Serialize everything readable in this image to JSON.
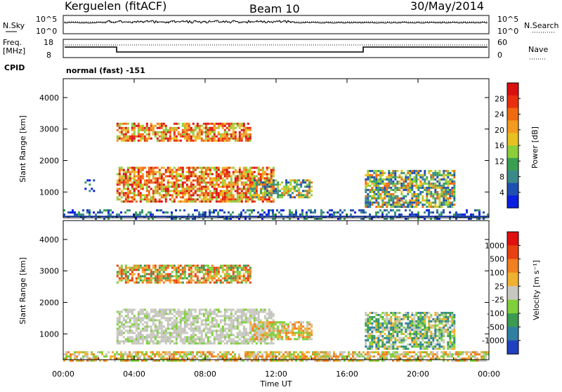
{
  "header": {
    "site": "Kerguelen (fitACF)",
    "beam": "Beam 10",
    "date": "30/May/2014"
  },
  "params": {
    "nsky_label": "N.Sky",
    "nsearch_label": "N.Search",
    "nsky_ticks": [
      "10^5",
      "10^0"
    ],
    "nsearch_ticks": [
      "10^5",
      "10^0"
    ],
    "freq_label_1": "Freq.",
    "freq_label_2": "[MHz]",
    "freq_ticks": [
      "18",
      "8"
    ],
    "nave_label": "Nave",
    "nave_ticks": [
      "60",
      "0"
    ],
    "cpid_label": "CPID",
    "cpid_value": "normal (fast) -151"
  },
  "chart_data": [
    {
      "type": "heatmap",
      "panel": "power",
      "ylabel": "Slant Range [km]",
      "yticks": [
        1000,
        2000,
        3000,
        4000
      ],
      "ylim": [
        180,
        4600
      ],
      "xlim_hours": [
        0,
        24
      ],
      "xticks": [
        "00:00",
        "04:00",
        "08:00",
        "12:00",
        "16:00",
        "20:00",
        "00:00"
      ],
      "xticks_hours": [
        0,
        4,
        8,
        12,
        16,
        20,
        24
      ],
      "colorbar_label": "Power [dB]",
      "colorbar_ticks": [
        "4",
        "8",
        "12",
        "16",
        "20",
        "24",
        "28"
      ],
      "colorbar_colors": [
        "#0a1fe0",
        "#1f4fb0",
        "#3a8a8a",
        "#3aa050",
        "#8ccf3a",
        "#e8c020",
        "#f39a20",
        "#f06a10",
        "#e83010",
        "#d81010"
      ],
      "echo_regions": [
        {
          "t0": 3.0,
          "t1": 10.5,
          "r0": 2600,
          "r1": 3200,
          "level": "high"
        },
        {
          "t0": 3.0,
          "t1": 11.8,
          "r0": 700,
          "r1": 1800,
          "level": "high"
        },
        {
          "t0": 10.5,
          "t1": 14.0,
          "r0": 800,
          "r1": 1400,
          "level": "mid"
        },
        {
          "t0": 17.0,
          "t1": 22.0,
          "r0": 500,
          "r1": 1700,
          "level": "mid"
        },
        {
          "t0": 1.2,
          "t1": 1.7,
          "r0": 1000,
          "r1": 1400,
          "level": "low"
        },
        {
          "t0": 0.0,
          "t1": 24.0,
          "r0": 180,
          "r1": 450,
          "level": "low"
        }
      ]
    },
    {
      "type": "heatmap",
      "panel": "velocity",
      "ylabel": "Slant Range [km]",
      "yticks": [
        1000,
        2000,
        3000,
        4000
      ],
      "ylim": [
        180,
        4600
      ],
      "xlim_hours": [
        0,
        24
      ],
      "xticks": [
        "00:00",
        "04:00",
        "08:00",
        "12:00",
        "16:00",
        "20:00",
        "00:00"
      ],
      "xticks_hours": [
        0,
        4,
        8,
        12,
        16,
        20,
        24
      ],
      "xlabel": "Time UT",
      "colorbar_label": "Velocity [m s⁻¹]",
      "colorbar_ticks": [
        "1000",
        "500",
        "100",
        "25",
        "-25",
        "-100",
        "-500",
        "-1000"
      ],
      "colorbar_colors": [
        "#2040c0",
        "#2f7fa0",
        "#3a9a50",
        "#7fcf3a",
        "#c8c8c0",
        "#f0b030",
        "#f08020",
        "#e84010",
        "#e01010"
      ],
      "echo_regions": [
        {
          "t0": 3.0,
          "t1": 10.5,
          "r0": 2600,
          "r1": 3200,
          "level": "toward"
        },
        {
          "t0": 3.0,
          "t1": 11.8,
          "r0": 700,
          "r1": 1800,
          "level": "ground"
        },
        {
          "t0": 10.5,
          "t1": 14.0,
          "r0": 800,
          "r1": 1400,
          "level": "away"
        },
        {
          "t0": 17.0,
          "t1": 22.0,
          "r0": 500,
          "r1": 1700,
          "level": "mixed"
        },
        {
          "t0": 0.0,
          "t1": 24.0,
          "r0": 180,
          "r1": 450,
          "level": "away"
        }
      ]
    }
  ]
}
